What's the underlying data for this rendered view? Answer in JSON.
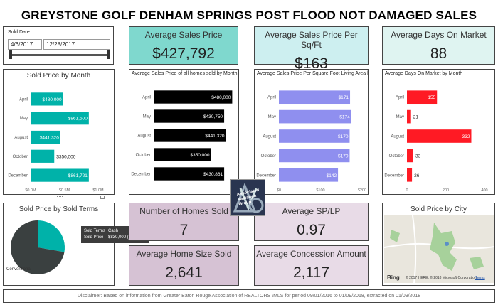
{
  "header": {
    "title": "GREYSTONE GOLF DENHAM SPRINGS POST FLOOD NOT DAMAGED SALES"
  },
  "slicer": {
    "label": "Sold Date",
    "start": "4/6/2017",
    "end": "12/28/2017"
  },
  "cards": {
    "avg_sales_price": {
      "title": "Average Sales Price",
      "value": "$427,792",
      "color": "#7fd8ce"
    },
    "avg_sales_price_sqft": {
      "title": "Average Sales Price Per Sq/Ft",
      "value": "$163",
      "color": "#cdeff0"
    },
    "avg_days_market": {
      "title": "Average Days On Market",
      "value": "88",
      "color": "#dff4f1"
    },
    "homes_sold": {
      "title": "Number of Homes Sold",
      "value": "7",
      "color": "#d6c2d4"
    },
    "avg_sp_lp": {
      "title": "Average SP/LP",
      "value": "0.97",
      "color": "#e8dbe7"
    },
    "avg_home_size": {
      "title": "Average Home Size Sold",
      "value": "2,641",
      "color": "#d6c2d4"
    },
    "avg_concession": {
      "title": "Average Concession Amount",
      "value": "2,117",
      "color": "#e8dbe7"
    }
  },
  "chart_data": [
    {
      "type": "bar",
      "id": "sold-price-by-month",
      "title": "Sold Price by Month",
      "categories": [
        "April",
        "May",
        "August",
        "October",
        "December"
      ],
      "values": [
        480000,
        861500,
        441320,
        350000,
        861721
      ],
      "data_labels": [
        "$480,000",
        "$861,500",
        "$441,320",
        "$350,000",
        "$861,721"
      ],
      "ticks": [
        "$0.0M",
        "$0.5M",
        "$1.0M"
      ],
      "xlim": [
        0,
        1000000
      ],
      "color": "#00b2a9"
    },
    {
      "type": "bar",
      "id": "avg-sales-price-by-month",
      "title": "Average Sales Price of all homes sold by Month",
      "categories": [
        "April",
        "May",
        "August",
        "October",
        "December"
      ],
      "values": [
        480000,
        430750,
        441320,
        350000,
        430861
      ],
      "data_labels": [
        "$480,000",
        "$430,750",
        "$441,320",
        "$350,000",
        "$430,861"
      ],
      "ticks": [],
      "xlim": [
        0,
        500000
      ],
      "color": "#000000"
    },
    {
      "type": "bar",
      "id": "avg-price-per-sqft-by-month",
      "title": "Average Sales Price Per Square Foot Living Area b...",
      "categories": [
        "April",
        "May",
        "August",
        "October",
        "December"
      ],
      "values": [
        171,
        174,
        170,
        170,
        142
      ],
      "data_labels": [
        "$171",
        "$174",
        "$170",
        "$170",
        "$142"
      ],
      "ticks": [
        "$0",
        "$100",
        "$200"
      ],
      "xlim": [
        0,
        200
      ],
      "color": "#8f8fef"
    },
    {
      "type": "bar",
      "id": "avg-days-on-market-by-month",
      "title": "Average Days On Market by Month",
      "categories": [
        "April",
        "May",
        "August",
        "October",
        "December"
      ],
      "values": [
        155,
        21,
        332,
        33,
        26
      ],
      "data_labels": [
        "155",
        "21",
        "332",
        "33",
        "26"
      ],
      "ticks": [
        "0",
        "200",
        "400"
      ],
      "xlim": [
        0,
        400
      ],
      "color": "#ff1a24"
    },
    {
      "type": "pie",
      "id": "sold-price-by-sold-terms",
      "title": "Sold Price by Sold Terms",
      "slices": [
        {
          "label": "Cash",
          "value": 27.72,
          "color": "#00b2a9"
        },
        {
          "label": "Conventional",
          "value": 72.28,
          "color": "#3a4040"
        }
      ],
      "tooltip": {
        "k1": "Sold Terms",
        "v1": "Cash",
        "k2": "Sold Price",
        "v2": "$830,000 (27.72%)"
      }
    }
  ],
  "map": {
    "title": "Sold Price by City",
    "brand": "Bing",
    "credit": "© 2017 HERE, © 2018 Microsoft Corporation",
    "terms": "Terms"
  },
  "logo": {
    "text": "Associated Valuation Group"
  },
  "footer": {
    "disclaimer": "Disclaimer: Based on information from Greater Baton Rouge Association of REALTORS \\MLS for period 09/01/2016 to 01/09/2018, extracted on 01/09/2018"
  }
}
